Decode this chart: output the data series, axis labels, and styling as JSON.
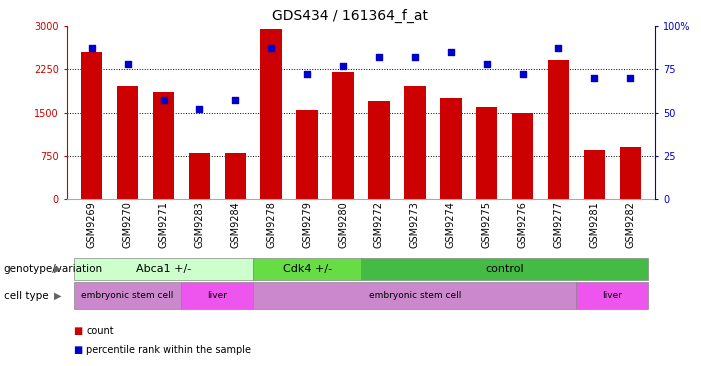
{
  "title": "GDS434 / 161364_f_at",
  "samples": [
    "GSM9269",
    "GSM9270",
    "GSM9271",
    "GSM9283",
    "GSM9284",
    "GSM9278",
    "GSM9279",
    "GSM9280",
    "GSM9272",
    "GSM9273",
    "GSM9274",
    "GSM9275",
    "GSM9276",
    "GSM9277",
    "GSM9281",
    "GSM9282"
  ],
  "counts": [
    2550,
    1950,
    1850,
    800,
    800,
    2950,
    1550,
    2200,
    1700,
    1950,
    1750,
    1600,
    1500,
    2400,
    850,
    900
  ],
  "percentiles": [
    87,
    78,
    57,
    52,
    57,
    87,
    72,
    77,
    82,
    82,
    85,
    78,
    72,
    87,
    70,
    70
  ],
  "ylim_left": [
    0,
    3000
  ],
  "ylim_right": [
    0,
    100
  ],
  "yticks_left": [
    0,
    750,
    1500,
    2250,
    3000
  ],
  "yticks_right": [
    0,
    25,
    50,
    75,
    100
  ],
  "bar_color": "#cc0000",
  "dot_color": "#0000cc",
  "genotype_groups": [
    {
      "label": "Abca1 +/-",
      "start": 0,
      "end": 5,
      "color": "#ccffcc"
    },
    {
      "label": "Cdk4 +/-",
      "start": 5,
      "end": 8,
      "color": "#66dd44"
    },
    {
      "label": "control",
      "start": 8,
      "end": 16,
      "color": "#44bb44"
    }
  ],
  "celltype_groups": [
    {
      "label": "embryonic stem cell",
      "start": 0,
      "end": 3,
      "color": "#cc88cc"
    },
    {
      "label": "liver",
      "start": 3,
      "end": 5,
      "color": "#ee55ee"
    },
    {
      "label": "embryonic stem cell",
      "start": 5,
      "end": 14,
      "color": "#cc88cc"
    },
    {
      "label": "liver",
      "start": 14,
      "end": 16,
      "color": "#ee55ee"
    }
  ],
  "legend_count_color": "#cc0000",
  "legend_pct_color": "#0000cc",
  "title_fontsize": 10,
  "tick_fontsize": 7,
  "annot_fontsize": 8
}
